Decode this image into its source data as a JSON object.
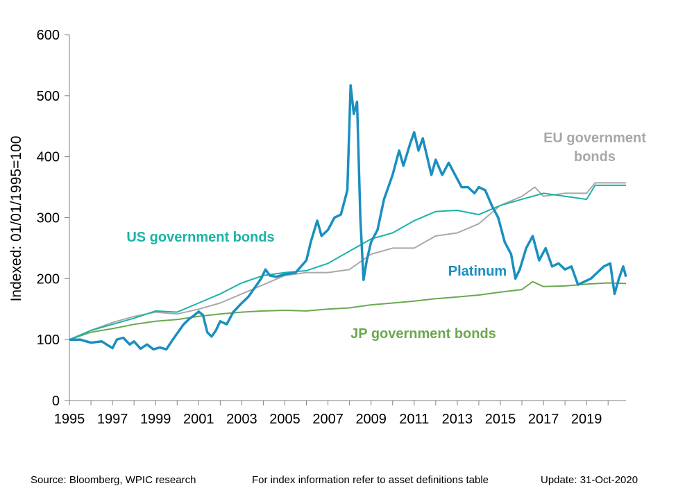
{
  "colors": {
    "platinum": "#1a8fc0",
    "us": "#1ab3a6",
    "eu": "#a8a8a8",
    "jp": "#6aa84f",
    "axis": "#808080"
  },
  "chart_data": {
    "type": "line",
    "ylabel": "Indexed: 01/01/1995=100",
    "xlim": [
      1995,
      2020.83
    ],
    "ylim": [
      0,
      600
    ],
    "yticks": [
      0,
      100,
      200,
      300,
      400,
      500,
      600
    ],
    "xticks": [
      1995,
      1997,
      1999,
      2001,
      2003,
      2005,
      2007,
      2009,
      2011,
      2013,
      2015,
      2017,
      2019
    ],
    "series": [
      {
        "name": "Platinum",
        "x": [
          1995,
          1995.5,
          1996,
          1996.5,
          1997,
          1997.2,
          1997.5,
          1997.8,
          1998,
          1998.3,
          1998.6,
          1998.9,
          1999.2,
          1999.5,
          1999.8,
          2000,
          2000.3,
          2000.6,
          2000.8,
          2001,
          2001.2,
          2001.4,
          2001.6,
          2001.8,
          2002,
          2002.3,
          2002.6,
          2003,
          2003.3,
          2003.6,
          2003.9,
          2004.1,
          2004.3,
          2004.6,
          2005,
          2005.5,
          2006,
          2006.2,
          2006.5,
          2006.7,
          2007,
          2007.3,
          2007.6,
          2007.9,
          2008.05,
          2008.2,
          2008.35,
          2008.5,
          2008.65,
          2008.8,
          2009,
          2009.3,
          2009.6,
          2010,
          2010.3,
          2010.5,
          2010.8,
          2011,
          2011.2,
          2011.4,
          2011.6,
          2011.8,
          2012,
          2012.3,
          2012.6,
          2012.9,
          2013.2,
          2013.5,
          2013.8,
          2014,
          2014.3,
          2014.6,
          2014.9,
          2015.2,
          2015.5,
          2015.7,
          2015.9,
          2016.2,
          2016.5,
          2016.8,
          2017.1,
          2017.4,
          2017.7,
          2018,
          2018.3,
          2018.6,
          2018.9,
          2019.2,
          2019.5,
          2019.8,
          2020.1,
          2020.3,
          2020.5,
          2020.7,
          2020.83
        ],
        "values": [
          100,
          100,
          95,
          97,
          86,
          100,
          103,
          92,
          97,
          85,
          92,
          84,
          87,
          84,
          100,
          110,
          125,
          135,
          140,
          146,
          140,
          112,
          105,
          115,
          130,
          125,
          145,
          160,
          170,
          185,
          200,
          215,
          205,
          203,
          207,
          210,
          230,
          260,
          295,
          270,
          280,
          300,
          305,
          345,
          517,
          470,
          490,
          300,
          198,
          230,
          260,
          280,
          330,
          370,
          410,
          385,
          420,
          440,
          410,
          430,
          400,
          370,
          395,
          370,
          390,
          370,
          350,
          350,
          340,
          350,
          345,
          320,
          300,
          260,
          240,
          200,
          215,
          250,
          270,
          230,
          250,
          220,
          225,
          215,
          220,
          190,
          195,
          200,
          210,
          220,
          225,
          175,
          200,
          220,
          203
        ]
      },
      {
        "name": "US government bonds",
        "x": [
          1995,
          1996,
          1997,
          1998,
          1999,
          2000,
          2001,
          2002,
          2003,
          2004,
          2005,
          2006,
          2007,
          2008,
          2009,
          2010,
          2011,
          2012,
          2013,
          2014,
          2015,
          2016,
          2017,
          2018,
          2019,
          2019.4,
          2020,
          2020.83
        ],
        "values": [
          100,
          115,
          125,
          135,
          147,
          145,
          160,
          175,
          193,
          205,
          210,
          213,
          225,
          245,
          265,
          275,
          295,
          310,
          312,
          305,
          320,
          330,
          340,
          335,
          330,
          353,
          353,
          353
        ]
      },
      {
        "name": "EU government bonds",
        "x": [
          1995,
          1996,
          1997,
          1998,
          1999,
          2000,
          2001,
          2002,
          2003,
          2004,
          2005,
          2006,
          2007,
          2008,
          2009,
          2010,
          2011,
          2012,
          2013,
          2014,
          2015,
          2016,
          2016.6,
          2017,
          2018,
          2019,
          2019.4,
          2020,
          2020.83
        ],
        "values": [
          100,
          115,
          128,
          138,
          145,
          142,
          150,
          160,
          175,
          190,
          205,
          210,
          210,
          215,
          240,
          250,
          250,
          270,
          275,
          290,
          320,
          335,
          350,
          335,
          340,
          340,
          357,
          357,
          357
        ]
      },
      {
        "name": "JP government bonds",
        "x": [
          1995,
          1996,
          1997,
          1998,
          1999,
          2000,
          2001,
          2002,
          2003,
          2004,
          2005,
          2006,
          2007,
          2008,
          2009,
          2010,
          2011,
          2012,
          2013,
          2014,
          2015,
          2016,
          2016.5,
          2017,
          2018,
          2019,
          2020,
          2020.83
        ],
        "values": [
          100,
          112,
          118,
          125,
          130,
          133,
          138,
          142,
          145,
          147,
          148,
          147,
          150,
          152,
          157,
          160,
          163,
          167,
          170,
          173,
          178,
          182,
          195,
          187,
          188,
          191,
          193,
          192
        ]
      }
    ],
    "annotations": [
      {
        "key": "eu",
        "lines": [
          "EU government",
          "bonds"
        ]
      },
      {
        "key": "us",
        "lines": [
          "US government bonds"
        ]
      },
      {
        "key": "platinum",
        "lines": [
          "Platinum"
        ]
      },
      {
        "key": "jp",
        "lines": [
          "JP government bonds"
        ]
      }
    ]
  },
  "footer": {
    "source": "Source: Bloomberg, WPIC research",
    "note": "For index information refer to asset definitions table",
    "update": "Update: 31-Oct-2020"
  }
}
